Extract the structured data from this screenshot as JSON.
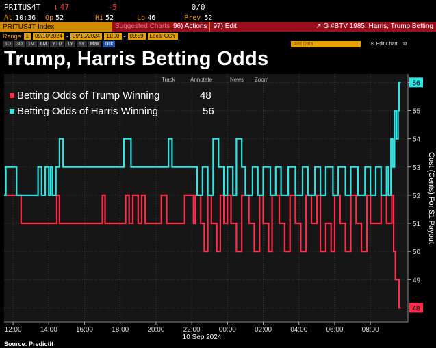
{
  "terminal": {
    "ticker": "PRITUS4T",
    "last_arrow": "↓",
    "last": "47",
    "change": "-5",
    "trades": "0/0",
    "at_label": "At",
    "time": "10:36",
    "open_label": "Op",
    "open": "52",
    "high_label": "Hi",
    "high": "52",
    "low_label": "Lo",
    "low": "46",
    "prev_label": "Prev",
    "prev": "52",
    "security": "PRITUS4T Index",
    "suggested": "Suggested Charts",
    "actions": "96) Actions",
    "edit": "97) Edit",
    "window_title": "G #BTV 1985: Harris, Trump Betting",
    "range_label": "Range",
    "range_num": "1",
    "start_date": "09/10/2024",
    "end_date": "09/10/2024",
    "start_time": "11:00",
    "end_time": "09:59",
    "currency": "Local CCY",
    "tabs": [
      "1D",
      "3D",
      "1M",
      "6M",
      "YTD",
      "1Y",
      "5Y",
      "Max",
      "Tick"
    ],
    "add_data": "Add Data",
    "edit_chart": "Edit Chart",
    "chart_menu": [
      "Track",
      "Annotate",
      "News",
      "Zoom"
    ]
  },
  "title": "Trump, Harris Betting Odds",
  "source": "Source: PredictIt",
  "colors": {
    "trump": "#ff2d4a",
    "harris": "#2ee6e6",
    "amber": "#f2a000",
    "background": "#000000",
    "plot_bg": "#161616",
    "grid": "#444444"
  },
  "chart_data": {
    "type": "line",
    "title": "Trump, Harris Betting Odds",
    "xlabel": "10 Sep 2024",
    "ylabel": "Cost (Cents) For $1 Payout",
    "ylim": [
      47.5,
      56.3
    ],
    "xlim": [
      11.5,
      34.1
    ],
    "yticks": [
      48,
      49,
      50,
      51,
      52,
      53,
      54,
      55,
      56
    ],
    "xticks": [
      {
        "x": 12,
        "label": "12:00"
      },
      {
        "x": 14,
        "label": "14:00"
      },
      {
        "x": 16,
        "label": "16:00"
      },
      {
        "x": 18,
        "label": "18:00"
      },
      {
        "x": 20,
        "label": "20:00"
      },
      {
        "x": 22,
        "label": "22:00"
      },
      {
        "x": 24,
        "label": "00:00"
      },
      {
        "x": 26,
        "label": "02:00"
      },
      {
        "x": 28,
        "label": "04:00"
      },
      {
        "x": 30,
        "label": "06:00"
      },
      {
        "x": 32,
        "label": "08:00"
      }
    ],
    "grid": true,
    "legend": "top-left",
    "series": [
      {
        "name": "Betting Odds of Trump Winning",
        "last": "48",
        "color": "#ff2d4a",
        "x": [
          11.5,
          12.35,
          12.45,
          14.3,
          14.45,
          14.6,
          14.75,
          16.8,
          17.0,
          17.15,
          17.3,
          18.1,
          18.3,
          18.5,
          18.7,
          19.0,
          19.2,
          19.4,
          19.6,
          20.1,
          20.3,
          20.6,
          20.8,
          21.4,
          21.6,
          22.0,
          22.1,
          22.2,
          22.5,
          22.7,
          22.9,
          23.1,
          23.4,
          23.6,
          23.8,
          24.0,
          24.2,
          24.5,
          24.8,
          25.2,
          25.5,
          25.8,
          26.0,
          26.3,
          26.5,
          26.9,
          27.2,
          27.5,
          27.8,
          28.1,
          28.4,
          28.7,
          29.0,
          29.2,
          29.5,
          29.8,
          30.0,
          30.3,
          30.6,
          30.9,
          31.2,
          31.5,
          31.8,
          32.0,
          32.3,
          32.6,
          32.9,
          33.0,
          33.2,
          33.3,
          33.4,
          33.5,
          33.6,
          33.7
        ],
        "y": [
          52,
          52,
          51,
          51,
          52,
          51,
          51,
          51,
          52,
          51,
          51,
          51,
          52,
          51,
          52,
          51,
          52,
          51,
          51,
          51,
          52,
          51,
          51,
          51,
          52,
          52,
          51,
          52,
          51,
          50,
          52,
          51,
          50,
          52,
          51,
          52,
          51,
          50,
          52,
          51,
          50,
          52,
          51,
          50,
          52,
          51,
          50,
          52,
          51,
          50,
          52,
          51,
          52,
          50,
          51,
          50,
          52,
          51,
          50,
          52,
          51,
          50,
          52,
          51,
          51,
          52,
          51,
          51,
          52,
          50,
          49,
          49,
          48,
          48
        ]
      },
      {
        "name": "Betting Odds of Harris Winning",
        "last": "56",
        "color": "#2ee6e6",
        "x": [
          11.5,
          11.6,
          11.75,
          12.2,
          12.4,
          12.8,
          13.3,
          13.4,
          13.6,
          13.8,
          14.0,
          14.1,
          14.2,
          14.4,
          14.6,
          14.8,
          15.0,
          15.3,
          15.6,
          17.2,
          17.5,
          18.0,
          18.2,
          18.6,
          18.9,
          19.1,
          20.0,
          20.4,
          20.7,
          20.9,
          21.0,
          22.0,
          22.3,
          22.6,
          22.9,
          23.2,
          23.5,
          23.8,
          24.0,
          24.3,
          24.5,
          24.8,
          25.0,
          25.4,
          25.7,
          26.0,
          26.4,
          26.7,
          27.0,
          27.4,
          27.8,
          28.2,
          28.5,
          28.9,
          29.2,
          29.5,
          29.9,
          30.2,
          30.6,
          30.9,
          31.3,
          31.7,
          32.0,
          32.3,
          32.6,
          32.9,
          33.0,
          33.15,
          33.25,
          33.35,
          33.45,
          33.55,
          33.6,
          33.7
        ],
        "y": [
          52,
          53,
          53,
          52,
          52,
          52,
          52,
          53,
          52,
          53,
          52,
          53,
          52,
          53,
          54,
          53,
          53,
          53,
          53,
          53,
          53,
          53,
          54,
          53,
          53,
          53,
          53,
          53,
          54,
          53,
          53,
          53,
          52,
          53,
          52,
          54,
          53,
          52,
          53,
          52,
          54,
          53,
          52,
          53,
          52,
          53,
          52,
          53,
          52,
          53,
          52,
          53,
          52,
          53,
          52,
          53,
          52,
          53,
          52,
          53,
          52,
          53,
          52,
          53,
          52,
          53,
          52,
          54,
          53,
          55,
          54,
          55,
          56,
          56
        ]
      }
    ]
  }
}
